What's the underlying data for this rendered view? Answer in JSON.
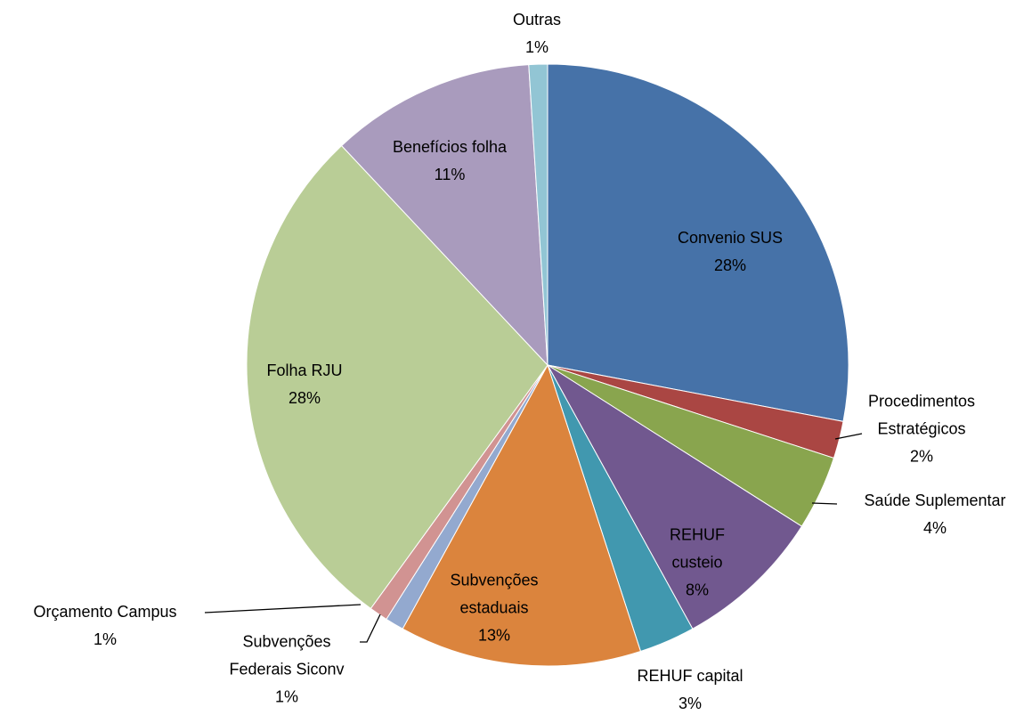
{
  "chart_data": {
    "type": "pie",
    "categories": [
      "Convenio SUS",
      "Procedimentos Estratégicos",
      "Saúde Suplementar",
      "REHUF custeio",
      "REHUF capital",
      "Subvenções estaduais",
      "Subvenções Federais Siconv",
      "Orçamento Campus",
      "Folha RJU",
      "Benefícios folha",
      "Outras"
    ],
    "values": [
      28,
      2,
      4,
      8,
      3,
      13,
      1,
      1,
      28,
      11,
      1
    ],
    "value_labels": [
      "28%",
      "2%",
      "4%",
      "8%",
      "3%",
      "13%",
      "1%",
      "1%",
      "28%",
      "11%",
      "1%"
    ],
    "colors": [
      "#4672a8",
      "#aa4643",
      "#89a54e",
      "#71588f",
      "#4198af",
      "#db843d",
      "#93a9cf",
      "#d19392",
      "#b9cd96",
      "#a99bbd",
      "#92c5d4"
    ]
  }
}
